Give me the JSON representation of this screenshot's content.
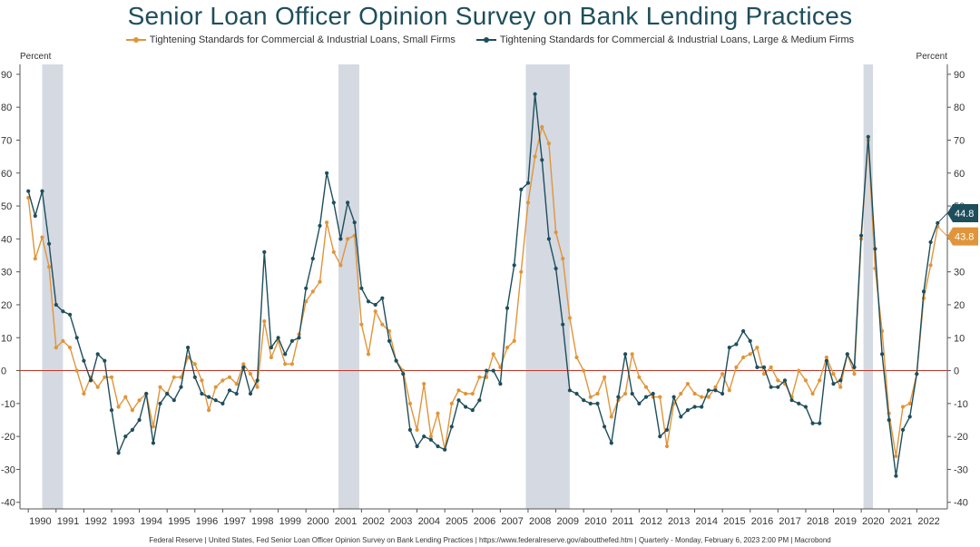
{
  "chart_data": {
    "type": "line",
    "title": "Senior Loan Officer Opinion Survey on Bank Lending Practices",
    "ylabel_left": "Percent",
    "ylabel_right": "Percent",
    "ylim": [
      -42,
      93
    ],
    "yticks": [
      -40,
      -30,
      -20,
      -10,
      0,
      10,
      20,
      30,
      40,
      50,
      60,
      70,
      80,
      90
    ],
    "xlim": [
      1989.7,
      2023.1
    ],
    "xtick_labels": [
      "1990",
      "1991",
      "1992",
      "1993",
      "1994",
      "1995",
      "1996",
      "1997",
      "1998",
      "1999",
      "2000",
      "2001",
      "2002",
      "2003",
      "2004",
      "2005",
      "2006",
      "2007",
      "2008",
      "2009",
      "2010",
      "2011",
      "2012",
      "2013",
      "2014",
      "2015",
      "2016",
      "2017",
      "2018",
      "2019",
      "2020",
      "2021",
      "2022"
    ],
    "recessions": [
      [
        1990.5,
        1991.25
      ],
      [
        2001.17,
        2001.92
      ],
      [
        2007.92,
        2009.5
      ],
      [
        2020.08,
        2020.42
      ]
    ],
    "zero_line_color": "#c0392b",
    "colors": {
      "small": "#e0953a",
      "large": "#1e4e5c",
      "recession": "#d4d9e2"
    },
    "series": [
      {
        "name": "Tightening Standards for Commercial & Industrial Loans, Small Firms",
        "color": "#e0953a",
        "last_value": "43.8",
        "points": [
          [
            1990.0,
            52.5
          ],
          [
            1990.25,
            34
          ],
          [
            1990.5,
            40.5
          ],
          [
            1990.75,
            31.5
          ],
          [
            1991.0,
            7
          ],
          [
            1991.25,
            9
          ],
          [
            1991.5,
            7
          ],
          [
            1991.75,
            0
          ],
          [
            1992.0,
            -7
          ],
          [
            1992.25,
            -2
          ],
          [
            1992.5,
            -5
          ],
          [
            1992.75,
            -2
          ],
          [
            1993.0,
            -2
          ],
          [
            1993.25,
            -11
          ],
          [
            1993.5,
            -8
          ],
          [
            1993.75,
            -12
          ],
          [
            1994.0,
            -9
          ],
          [
            1994.25,
            -7
          ],
          [
            1994.5,
            -17
          ],
          [
            1994.75,
            -5
          ],
          [
            1995.0,
            -7
          ],
          [
            1995.25,
            -2
          ],
          [
            1995.5,
            -2
          ],
          [
            1995.75,
            4
          ],
          [
            1996.0,
            2
          ],
          [
            1996.25,
            -3
          ],
          [
            1996.5,
            -12
          ],
          [
            1996.75,
            -5
          ],
          [
            1997.0,
            -3
          ],
          [
            1997.25,
            -2
          ],
          [
            1997.5,
            -4
          ],
          [
            1997.75,
            2
          ],
          [
            1998.0,
            -1
          ],
          [
            1998.25,
            -5
          ],
          [
            1998.5,
            15
          ],
          [
            1998.75,
            4
          ],
          [
            1999.0,
            9
          ],
          [
            1999.25,
            2
          ],
          [
            1999.5,
            2
          ],
          [
            1999.75,
            11
          ],
          [
            2000.0,
            21
          ],
          [
            2000.25,
            24
          ],
          [
            2000.5,
            27
          ],
          [
            2000.75,
            45
          ],
          [
            2001.0,
            36
          ],
          [
            2001.25,
            32
          ],
          [
            2001.5,
            40
          ],
          [
            2001.75,
            41
          ],
          [
            2002.0,
            14
          ],
          [
            2002.25,
            5
          ],
          [
            2002.5,
            18
          ],
          [
            2002.75,
            14
          ],
          [
            2003.0,
            12
          ],
          [
            2003.25,
            3
          ],
          [
            2003.5,
            0
          ],
          [
            2003.75,
            -10
          ],
          [
            2004.0,
            -18
          ],
          [
            2004.25,
            -4
          ],
          [
            2004.5,
            -20
          ],
          [
            2004.75,
            -13
          ],
          [
            2005.0,
            -24
          ],
          [
            2005.25,
            -10
          ],
          [
            2005.5,
            -6
          ],
          [
            2005.75,
            -7
          ],
          [
            2006.0,
            -7
          ],
          [
            2006.25,
            -2
          ],
          [
            2006.5,
            -2
          ],
          [
            2006.75,
            5
          ],
          [
            2007.0,
            1
          ],
          [
            2007.25,
            7
          ],
          [
            2007.5,
            9
          ],
          [
            2007.75,
            30
          ],
          [
            2008.0,
            51
          ],
          [
            2008.25,
            65
          ],
          [
            2008.5,
            74
          ],
          [
            2008.75,
            69
          ],
          [
            2009.0,
            42
          ],
          [
            2009.25,
            34
          ],
          [
            2009.5,
            16
          ],
          [
            2009.75,
            4
          ],
          [
            2010.0,
            0
          ],
          [
            2010.25,
            -8
          ],
          [
            2010.5,
            -7
          ],
          [
            2010.75,
            -2
          ],
          [
            2011.0,
            -14
          ],
          [
            2011.25,
            -9
          ],
          [
            2011.5,
            -7
          ],
          [
            2011.75,
            5
          ],
          [
            2012.0,
            -2
          ],
          [
            2012.25,
            -5
          ],
          [
            2012.5,
            -8
          ],
          [
            2012.75,
            -8
          ],
          [
            2013.0,
            -23
          ],
          [
            2013.25,
            -10
          ],
          [
            2013.5,
            -7
          ],
          [
            2013.75,
            -4
          ],
          [
            2014.0,
            -7
          ],
          [
            2014.25,
            -8
          ],
          [
            2014.5,
            -8
          ],
          [
            2014.75,
            -5
          ],
          [
            2015.0,
            -1
          ],
          [
            2015.25,
            -6
          ],
          [
            2015.5,
            1
          ],
          [
            2015.75,
            4
          ],
          [
            2016.0,
            5
          ],
          [
            2016.25,
            7
          ],
          [
            2016.5,
            -1
          ],
          [
            2016.75,
            1
          ],
          [
            2017.0,
            -3
          ],
          [
            2017.25,
            -4
          ],
          [
            2017.5,
            -8
          ],
          [
            2017.75,
            0
          ],
          [
            2018.0,
            -3
          ],
          [
            2018.25,
            -7
          ],
          [
            2018.5,
            -3
          ],
          [
            2018.75,
            4
          ],
          [
            2019.0,
            -1
          ],
          [
            2019.25,
            -5
          ],
          [
            2019.5,
            5
          ],
          [
            2019.75,
            -1
          ],
          [
            2020.0,
            40
          ],
          [
            2020.25,
            70
          ],
          [
            2020.5,
            31
          ],
          [
            2020.75,
            12
          ],
          [
            2021.0,
            -13
          ],
          [
            2021.25,
            -26
          ],
          [
            2021.5,
            -11
          ],
          [
            2021.75,
            -10
          ],
          [
            2022.0,
            -1
          ],
          [
            2022.25,
            22
          ],
          [
            2022.5,
            32
          ],
          [
            2022.75,
            43.8
          ]
        ]
      },
      {
        "name": "Tightening Standards for Commercial & Industrial Loans, Large & Medium Firms",
        "color": "#1e4e5c",
        "last_value": "44.8",
        "points": [
          [
            1990.0,
            54.5
          ],
          [
            1990.25,
            47
          ],
          [
            1990.5,
            54.5
          ],
          [
            1990.75,
            38.5
          ],
          [
            1991.0,
            20
          ],
          [
            1991.25,
            18
          ],
          [
            1991.5,
            17
          ],
          [
            1991.75,
            10
          ],
          [
            1992.0,
            3
          ],
          [
            1992.25,
            -3
          ],
          [
            1992.5,
            5
          ],
          [
            1992.75,
            3
          ],
          [
            1993.0,
            -12
          ],
          [
            1993.25,
            -25
          ],
          [
            1993.5,
            -20
          ],
          [
            1993.75,
            -18
          ],
          [
            1994.0,
            -15
          ],
          [
            1994.25,
            -7
          ],
          [
            1994.5,
            -22
          ],
          [
            1994.75,
            -10
          ],
          [
            1995.0,
            -7
          ],
          [
            1995.25,
            -9
          ],
          [
            1995.5,
            -5
          ],
          [
            1995.75,
            7
          ],
          [
            1996.0,
            -2
          ],
          [
            1996.25,
            -7
          ],
          [
            1996.5,
            -8
          ],
          [
            1996.75,
            -9
          ],
          [
            1997.0,
            -10
          ],
          [
            1997.25,
            -6
          ],
          [
            1997.5,
            -7
          ],
          [
            1997.75,
            1
          ],
          [
            1998.0,
            -7
          ],
          [
            1998.25,
            -3
          ],
          [
            1998.5,
            36
          ],
          [
            1998.75,
            7
          ],
          [
            1999.0,
            10
          ],
          [
            1999.25,
            5
          ],
          [
            1999.5,
            9
          ],
          [
            1999.75,
            10
          ],
          [
            2000.0,
            25
          ],
          [
            2000.25,
            34
          ],
          [
            2000.5,
            44
          ],
          [
            2000.75,
            60
          ],
          [
            2001.0,
            51
          ],
          [
            2001.25,
            40
          ],
          [
            2001.5,
            51
          ],
          [
            2001.75,
            45
          ],
          [
            2002.0,
            25
          ],
          [
            2002.25,
            21
          ],
          [
            2002.5,
            20
          ],
          [
            2002.75,
            22
          ],
          [
            2003.0,
            9
          ],
          [
            2003.25,
            3
          ],
          [
            2003.5,
            -1
          ],
          [
            2003.75,
            -18
          ],
          [
            2004.0,
            -23
          ],
          [
            2004.25,
            -20
          ],
          [
            2004.5,
            -21
          ],
          [
            2004.75,
            -23
          ],
          [
            2005.0,
            -24
          ],
          [
            2005.25,
            -17
          ],
          [
            2005.5,
            -9
          ],
          [
            2005.75,
            -11
          ],
          [
            2006.0,
            -12
          ],
          [
            2006.25,
            -9
          ],
          [
            2006.5,
            0
          ],
          [
            2006.75,
            0
          ],
          [
            2007.0,
            -4
          ],
          [
            2007.25,
            19
          ],
          [
            2007.5,
            32
          ],
          [
            2007.75,
            55
          ],
          [
            2008.0,
            57
          ],
          [
            2008.25,
            84
          ],
          [
            2008.5,
            64
          ],
          [
            2008.75,
            40
          ],
          [
            2009.0,
            31
          ],
          [
            2009.25,
            14
          ],
          [
            2009.5,
            -6
          ],
          [
            2009.75,
            -7
          ],
          [
            2010.0,
            -9
          ],
          [
            2010.25,
            -10
          ],
          [
            2010.5,
            -10
          ],
          [
            2010.75,
            -17
          ],
          [
            2011.0,
            -22
          ],
          [
            2011.25,
            -8
          ],
          [
            2011.5,
            5
          ],
          [
            2011.75,
            -7
          ],
          [
            2012.0,
            -10
          ],
          [
            2012.25,
            -8
          ],
          [
            2012.5,
            -7
          ],
          [
            2012.75,
            -20
          ],
          [
            2013.0,
            -18
          ],
          [
            2013.25,
            -8
          ],
          [
            2013.5,
            -14
          ],
          [
            2013.75,
            -12
          ],
          [
            2014.0,
            -11
          ],
          [
            2014.25,
            -11
          ],
          [
            2014.5,
            -6
          ],
          [
            2014.75,
            -6
          ],
          [
            2015.0,
            -7
          ],
          [
            2015.25,
            7
          ],
          [
            2015.5,
            8
          ],
          [
            2015.75,
            12
          ],
          [
            2016.0,
            9
          ],
          [
            2016.25,
            1
          ],
          [
            2016.5,
            1
          ],
          [
            2016.75,
            -5
          ],
          [
            2017.0,
            -5
          ],
          [
            2017.25,
            -3
          ],
          [
            2017.5,
            -9
          ],
          [
            2017.75,
            -10
          ],
          [
            2018.0,
            -11
          ],
          [
            2018.25,
            -16
          ],
          [
            2018.5,
            -16
          ],
          [
            2018.75,
            3
          ],
          [
            2019.0,
            -4
          ],
          [
            2019.25,
            -3
          ],
          [
            2019.5,
            5
          ],
          [
            2019.75,
            1
          ],
          [
            2020.0,
            41
          ],
          [
            2020.25,
            71
          ],
          [
            2020.5,
            37
          ],
          [
            2020.75,
            5
          ],
          [
            2021.0,
            -15
          ],
          [
            2021.25,
            -32
          ],
          [
            2021.5,
            -18
          ],
          [
            2021.75,
            -14
          ],
          [
            2022.0,
            -1
          ],
          [
            2022.25,
            24
          ],
          [
            2022.5,
            39
          ],
          [
            2022.75,
            44.8
          ]
        ]
      }
    ]
  },
  "footer": {
    "text": "Federal Reserve  |  United States, Fed Senior Loan Officer Opinion Survey on Bank Lending Practices  |  https://www.federalreserve.gov/aboutthefed.htm  |  Quarterly - Monday, February 6, 2023 2:00 PM  |  Macrobond"
  }
}
